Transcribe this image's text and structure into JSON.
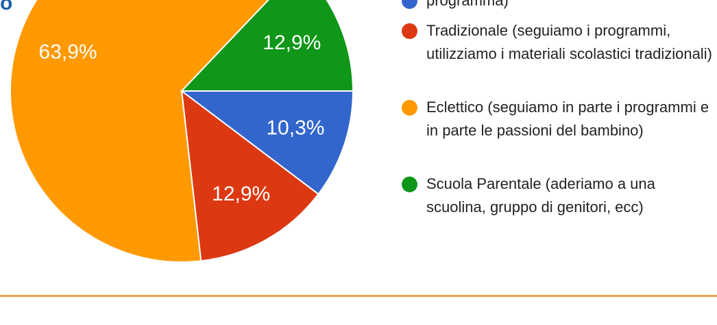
{
  "chart_data": {
    "type": "pie",
    "title": "o",
    "categories": [
      "programma)",
      "Tradizionale (seguiamo i programmi, utilizziamo i materiali scolastici tradizionali)",
      "Eclettico (seguiamo in parte i programmi e in parte le passioni del bambino)",
      "Scuola Parentale (aderiamo a una scuolina, gruppo di genitori, ecc)"
    ],
    "values": [
      10.3,
      12.9,
      63.9,
      12.9
    ],
    "value_labels": [
      "10,3%",
      "12,9%",
      "63,9%",
      "12,9%"
    ],
    "colors": [
      "#3366cc",
      "#dc3912",
      "#ff9900",
      "#109618"
    ]
  }
}
